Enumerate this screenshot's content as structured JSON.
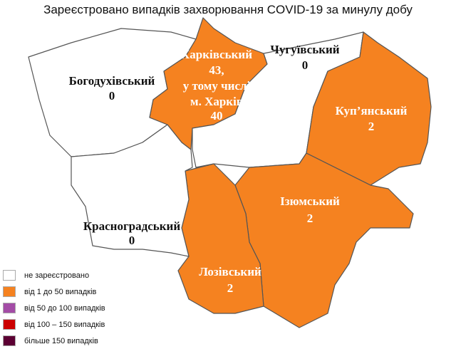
{
  "title": "Зареєстровано випадків захворювання COVID-19 за минулу добу",
  "colors": {
    "none": "#ffffff",
    "c1_50": "#f58220",
    "c50_100": "#a34ca6",
    "c100_150": "#cc0000",
    "c150plus": "#5c0033"
  },
  "regions": [
    {
      "name": "Богодухівський",
      "value": "0",
      "color": "#ffffff"
    },
    {
      "name": "Харківський",
      "value": "43,",
      "extra1": "у тому числі",
      "extra2": "м. Харків",
      "extra3": "40",
      "color": "#f58220"
    },
    {
      "name": "Чугуївський",
      "value": "0",
      "color": "#ffffff"
    },
    {
      "name": "Куп’янський",
      "value": "2",
      "color": "#f58220"
    },
    {
      "name": "Ізюмський",
      "value": "2",
      "color": "#f58220"
    },
    {
      "name": "Красноградський",
      "value": "0",
      "color": "#ffffff"
    },
    {
      "name": "Лозівський",
      "value": "2",
      "color": "#f58220"
    }
  ],
  "legend": [
    {
      "label": "не зареєстровано",
      "color": "#ffffff"
    },
    {
      "label": "від 1 до 50  випадків",
      "color": "#f58220"
    },
    {
      "label": "від 50 до 100  випадків",
      "color": "#a34ca6"
    },
    {
      "label": "від 100 – 150  випадків",
      "color": "#cc0000"
    },
    {
      "label": "більше 150  випадків",
      "color": "#5c0033"
    }
  ]
}
